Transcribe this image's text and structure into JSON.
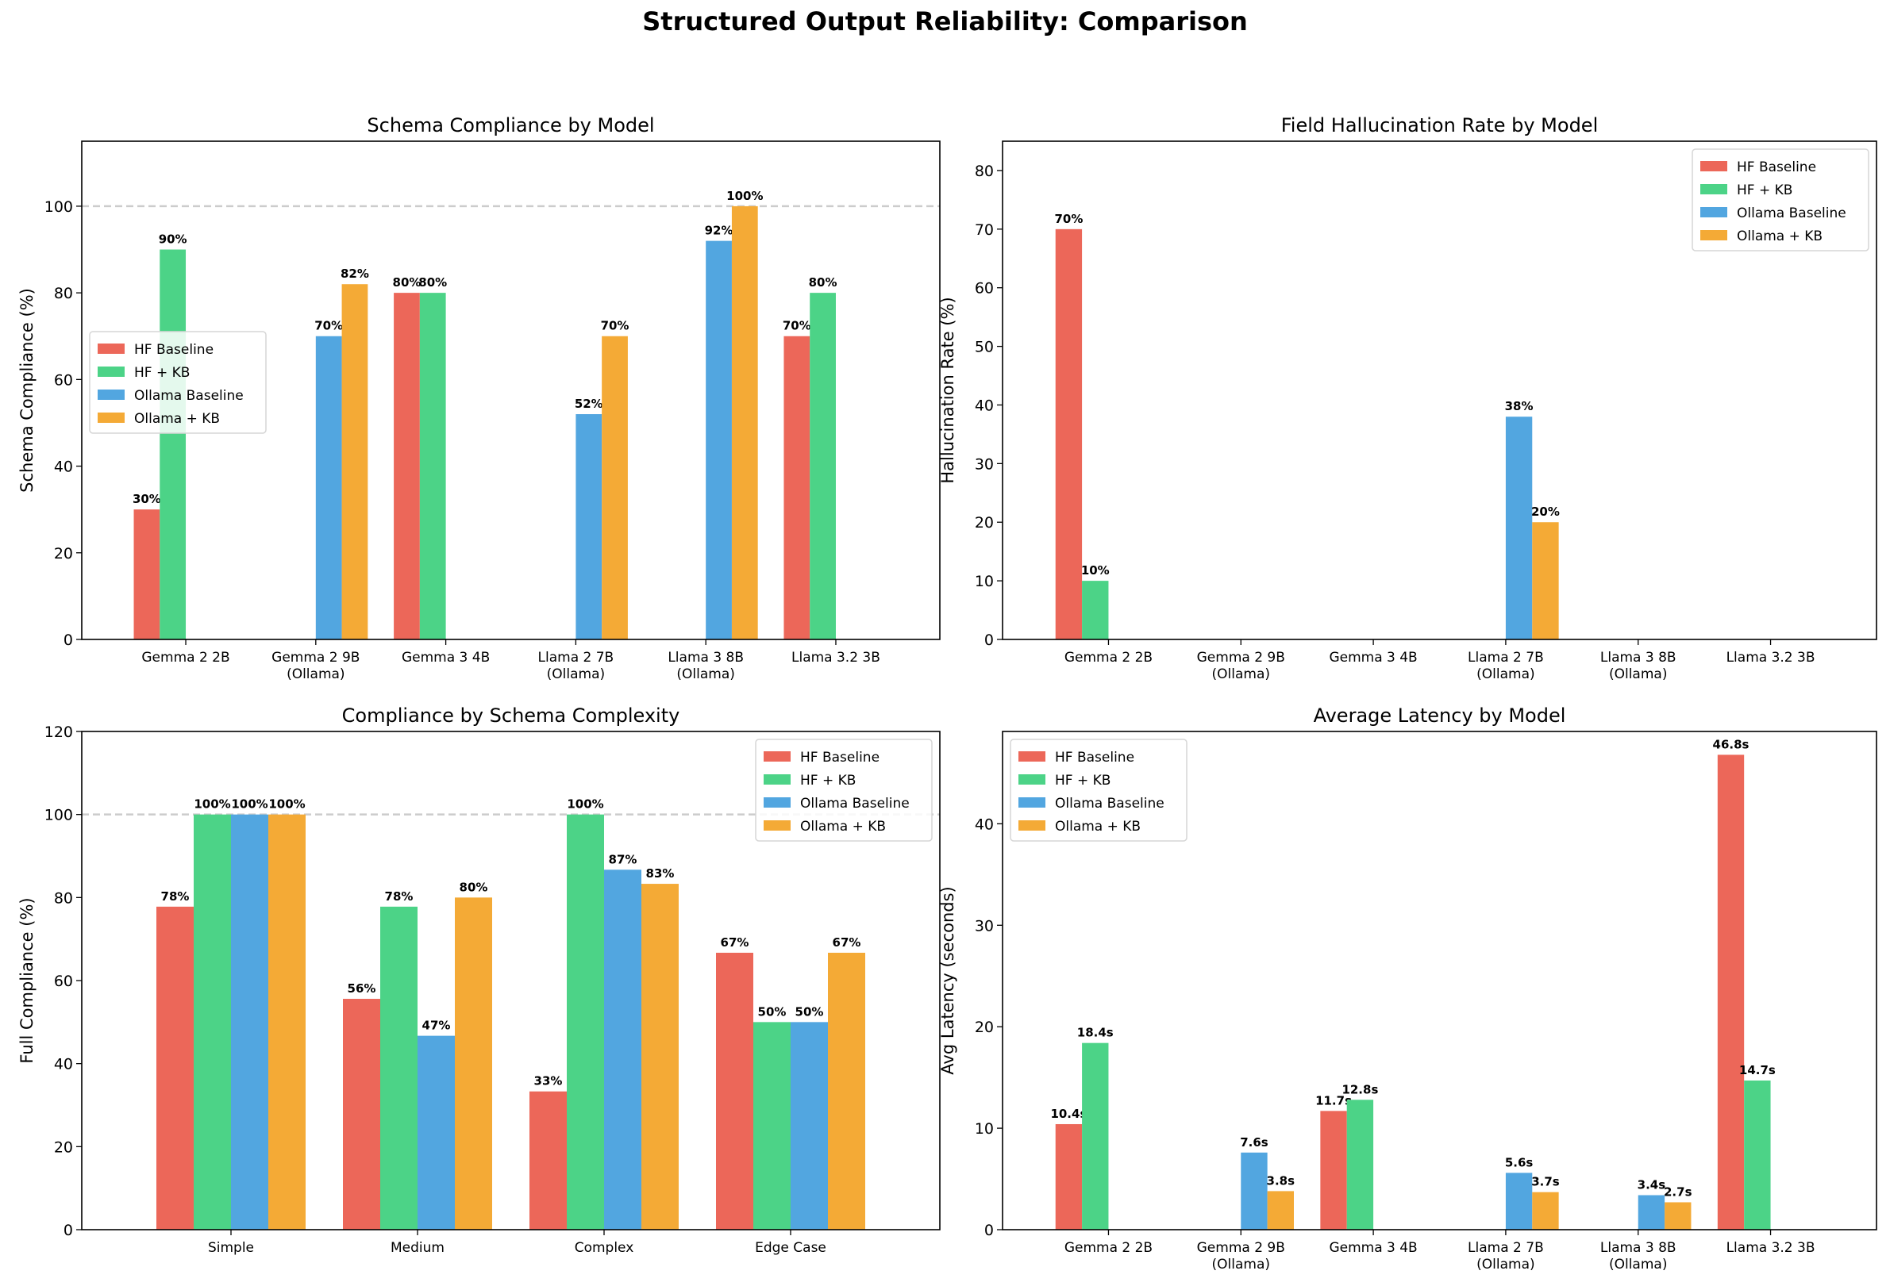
{
  "title": "Structured Output Reliability: Comparison",
  "colors": {
    "HF Baseline": "#ec6759",
    "HF + KB": "#4cd387",
    "Ollama Baseline": "#52a6e0",
    "Ollama + KB": "#f4aa36"
  },
  "chart_data": [
    {
      "type": "bar",
      "title": "Schema Compliance by Model",
      "xlabel": "",
      "ylabel": "Schema Compliance (%)",
      "ylim": [
        0,
        115
      ],
      "yticks": [
        0,
        20,
        40,
        60,
        80,
        100
      ],
      "reference_line": 100,
      "legend": "center-left",
      "label_format": "{v}%",
      "categories": [
        "Gemma 2 2B",
        "Gemma 2 9B\n(Ollama)",
        "Gemma 3 4B",
        "Llama 2 7B\n(Ollama)",
        "Llama 3 8B\n(Ollama)",
        "Llama 3.2 3B"
      ],
      "series": [
        {
          "name": "HF Baseline",
          "values": [
            30,
            null,
            80,
            null,
            null,
            70
          ]
        },
        {
          "name": "HF + KB",
          "values": [
            90,
            null,
            80,
            null,
            null,
            80
          ]
        },
        {
          "name": "Ollama Baseline",
          "values": [
            null,
            70,
            null,
            52,
            92,
            null
          ]
        },
        {
          "name": "Ollama + KB",
          "values": [
            null,
            82,
            null,
            70,
            100,
            null
          ]
        }
      ]
    },
    {
      "type": "bar",
      "title": "Field Hallucination Rate by Model",
      "xlabel": "",
      "ylabel": "Hallucination Rate (%)",
      "ylim": [
        0,
        85
      ],
      "yticks": [
        0,
        10,
        20,
        30,
        40,
        50,
        60,
        70,
        80
      ],
      "legend": "top-right",
      "label_format": "{v}%",
      "categories": [
        "Gemma 2 2B",
        "Gemma 2 9B\n(Ollama)",
        "Gemma 3 4B",
        "Llama 2 7B\n(Ollama)",
        "Llama 3 8B\n(Ollama)",
        "Llama 3.2 3B"
      ],
      "series": [
        {
          "name": "HF Baseline",
          "values": [
            70,
            null,
            0,
            null,
            null,
            0
          ]
        },
        {
          "name": "HF + KB",
          "values": [
            10,
            null,
            0,
            null,
            null,
            0
          ]
        },
        {
          "name": "Ollama Baseline",
          "values": [
            null,
            0,
            null,
            38,
            0,
            null
          ]
        },
        {
          "name": "Ollama + KB",
          "values": [
            null,
            0,
            null,
            20,
            0,
            null
          ]
        }
      ]
    },
    {
      "type": "bar",
      "title": "Compliance by Schema Complexity",
      "xlabel": "",
      "ylabel": "Full Compliance (%)",
      "ylim": [
        0,
        120
      ],
      "yticks": [
        0,
        20,
        40,
        60,
        80,
        100,
        120
      ],
      "reference_line": 100,
      "legend": "top-right",
      "label_format": "{v}%",
      "categories": [
        "Simple",
        "Medium",
        "Complex",
        "Edge Case"
      ],
      "series": [
        {
          "name": "HF Baseline",
          "values": [
            77.8,
            55.6,
            33.3,
            66.7
          ]
        },
        {
          "name": "HF + KB",
          "values": [
            100,
            77.8,
            100,
            50
          ]
        },
        {
          "name": "Ollama Baseline",
          "values": [
            100,
            46.7,
            86.7,
            50
          ]
        },
        {
          "name": "Ollama + KB",
          "values": [
            100,
            80,
            83.3,
            66.7
          ]
        }
      ]
    },
    {
      "type": "bar",
      "title": "Average Latency by Model",
      "xlabel": "",
      "ylabel": "Avg Latency (seconds)",
      "ylim": [
        0,
        49.1
      ],
      "yticks": [
        0,
        10,
        20,
        30,
        40
      ],
      "legend": "top-left",
      "label_format": "{v}s",
      "categories": [
        "Gemma 2 2B",
        "Gemma 2 9B\n(Ollama)",
        "Gemma 3 4B",
        "Llama 2 7B\n(Ollama)",
        "Llama 3 8B\n(Ollama)",
        "Llama 3.2 3B"
      ],
      "series": [
        {
          "name": "HF Baseline",
          "values": [
            10.4,
            null,
            11.7,
            null,
            null,
            46.8
          ]
        },
        {
          "name": "HF + KB",
          "values": [
            18.4,
            null,
            12.8,
            null,
            null,
            14.7
          ]
        },
        {
          "name": "Ollama Baseline",
          "values": [
            null,
            7.6,
            null,
            5.6,
            3.4,
            null
          ]
        },
        {
          "name": "Ollama + KB",
          "values": [
            null,
            3.8,
            null,
            3.7,
            2.7,
            null
          ]
        }
      ]
    }
  ]
}
